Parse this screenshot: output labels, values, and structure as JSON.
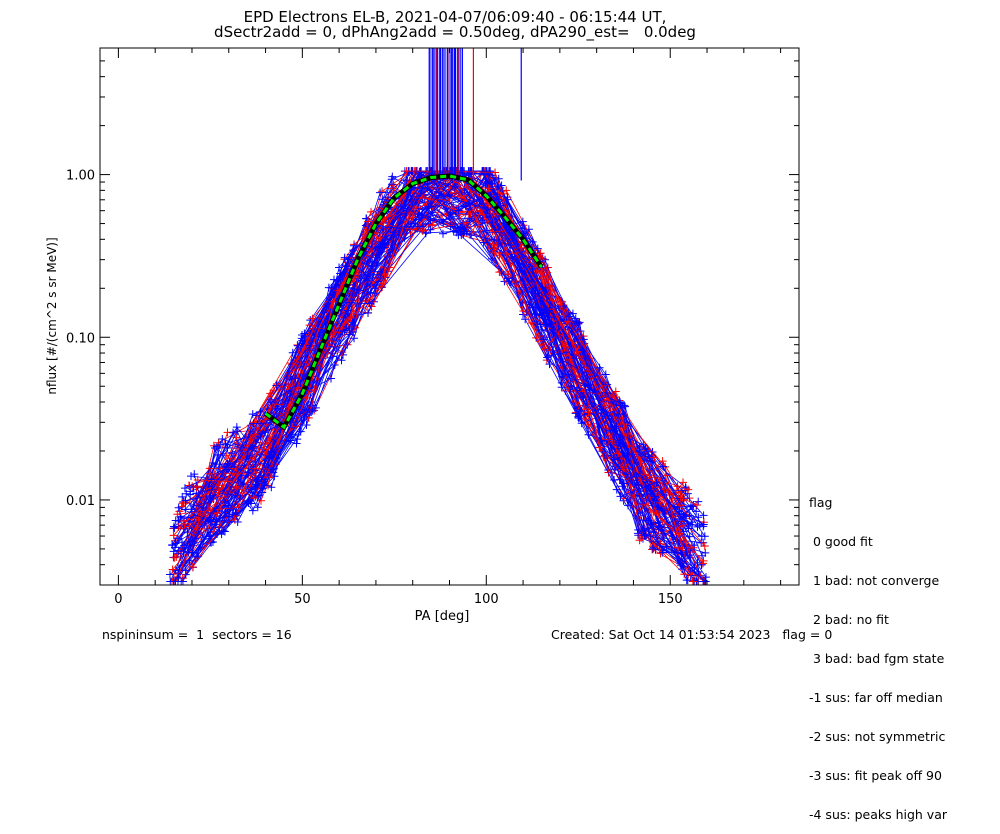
{
  "chart_data": {
    "type": "line",
    "title": "EPD Electrons EL-B, 2021-04-07/06:09:40 - 06:15:44 UT,",
    "subtitle": "dSectr2add = 0, dPhAng2add = 0.50deg, dPA290_est=   0.0deg",
    "xlabel": "PA [deg]",
    "ylabel": "nflux [#/(cm^2 s sr MeV)]",
    "xlim": [
      -5,
      185
    ],
    "ylim": [
      0.003,
      6.0
    ],
    "yscale": "log",
    "x_ticks": [
      "0",
      "50",
      "100",
      "150"
    ],
    "x_tick_values": [
      0,
      50,
      100,
      150
    ],
    "y_ticks": [
      "0.01",
      "0.10",
      "1.00"
    ],
    "y_tick_values": [
      0.01,
      0.1,
      1.0
    ],
    "grid": false,
    "colors": {
      "series_red": "#ff0000",
      "series_blue": "#0000ff",
      "fit": "#00ee00",
      "fit_outline": "#000000"
    },
    "fit_curve": {
      "name": "fit",
      "x": [
        40,
        45,
        50,
        55,
        60,
        65,
        70,
        75,
        80,
        85,
        90,
        95,
        100,
        105,
        110,
        115
      ],
      "y": [
        0.034,
        0.028,
        0.045,
        0.085,
        0.16,
        0.3,
        0.5,
        0.72,
        0.88,
        0.96,
        0.98,
        0.93,
        0.74,
        0.55,
        0.4,
        0.27
      ]
    },
    "representative_series": [
      {
        "color": "red",
        "x": [
          20,
          30,
          45,
          55,
          65,
          80,
          90,
          100,
          110,
          125,
          140,
          155
        ],
        "y": [
          0.006,
          0.012,
          0.03,
          0.12,
          0.3,
          0.9,
          0.95,
          0.7,
          0.3,
          0.08,
          0.02,
          0.008
        ]
      },
      {
        "color": "blue",
        "x": [
          22,
          35,
          48,
          58,
          70,
          82,
          92,
          102,
          115,
          128,
          142,
          158
        ],
        "y": [
          0.005,
          0.01,
          0.04,
          0.09,
          0.35,
          0.85,
          0.7,
          0.6,
          0.2,
          0.05,
          0.015,
          0.006
        ]
      }
    ],
    "vertical_marks": {
      "x": [
        84.5,
        85.5,
        86.5,
        87.5,
        88.5,
        89.5,
        90.5,
        91.5,
        92.5,
        93.5,
        96.5,
        109.5
      ],
      "colors": [
        "blue",
        "blue",
        "red",
        "blue",
        "blue",
        "red",
        "blue",
        "blue",
        "red",
        "blue",
        "red",
        "blue"
      ]
    }
  },
  "legend": {
    "title": "flag",
    "entries": [
      " 0 good fit",
      " 1 bad: not converge",
      " 2 bad: no fit",
      " 3 bad: bad fgm state",
      "-1 sus: far off median",
      "-2 sus: not symmetric",
      "-3 sus: fit peak off 90",
      "-4 sus: peaks high var"
    ]
  },
  "footer": {
    "left": "nspininsum =  1  sectors = 16",
    "right": "Created: Sat Oct 14 01:53:54 2023   flag = 0"
  }
}
